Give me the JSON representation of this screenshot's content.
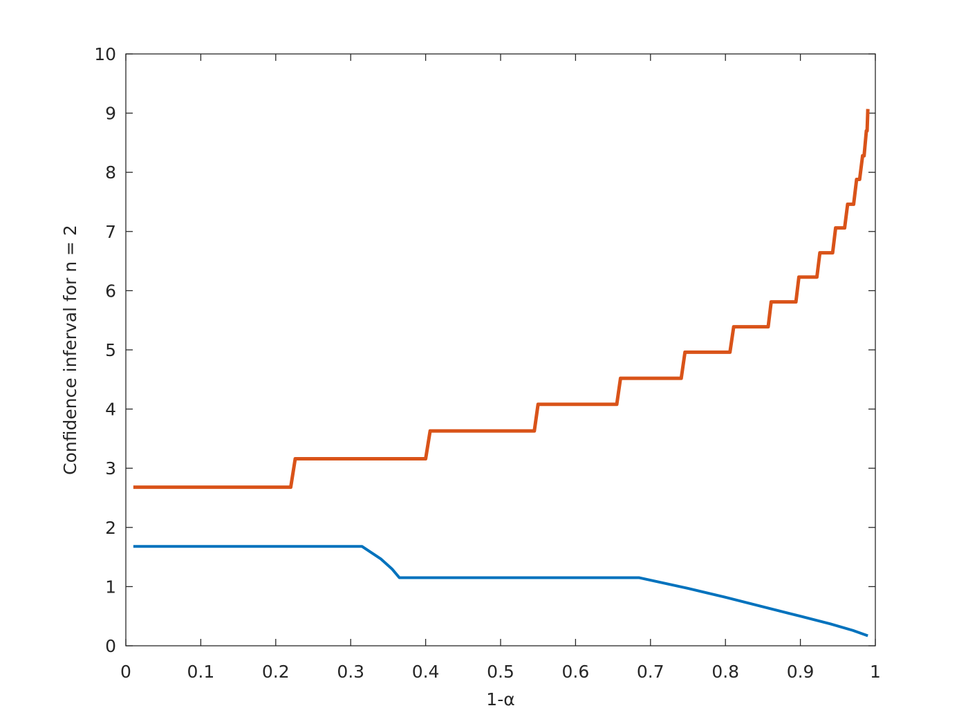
{
  "chart_data": {
    "type": "line",
    "xlabel": "1-α",
    "ylabel": "Confidence inferval for n = 2",
    "xlim": [
      0,
      1
    ],
    "ylim": [
      0,
      10
    ],
    "xticks": [
      0,
      0.1,
      0.2,
      0.3,
      0.4,
      0.5,
      0.6,
      0.7,
      0.8,
      0.9,
      1
    ],
    "yticks": [
      0,
      1,
      2,
      3,
      4,
      5,
      6,
      7,
      8,
      9,
      10
    ],
    "grid": false,
    "box": true,
    "series": [
      {
        "color": "#0072BD",
        "width": 4,
        "x": [
          0.01,
          0.315,
          0.34,
          0.355,
          0.365,
          0.685,
          0.75,
          0.8,
          0.85,
          0.9,
          0.94,
          0.97,
          0.99
        ],
        "values": [
          1.68,
          1.68,
          1.47,
          1.3,
          1.15,
          1.15,
          0.97,
          0.82,
          0.66,
          0.5,
          0.37,
          0.26,
          0.17
        ]
      },
      {
        "color": "#D95319",
        "width": 5,
        "x": [
          0.01,
          0.22,
          0.226,
          0.4,
          0.406,
          0.545,
          0.55,
          0.655,
          0.66,
          0.741,
          0.746,
          0.806,
          0.811,
          0.857,
          0.861,
          0.894,
          0.898,
          0.922,
          0.926,
          0.943,
          0.947,
          0.959,
          0.963,
          0.971,
          0.975,
          0.979,
          0.983,
          0.985,
          0.988,
          0.989,
          0.99
        ],
        "values": [
          2.68,
          2.68,
          3.16,
          3.16,
          3.63,
          3.63,
          4.08,
          4.08,
          4.52,
          4.52,
          4.96,
          4.96,
          5.39,
          5.39,
          5.81,
          5.81,
          6.23,
          6.23,
          6.64,
          6.64,
          7.06,
          7.06,
          7.46,
          7.46,
          7.88,
          7.88,
          8.28,
          8.28,
          8.7,
          8.7,
          9.07
        ]
      }
    ]
  }
}
